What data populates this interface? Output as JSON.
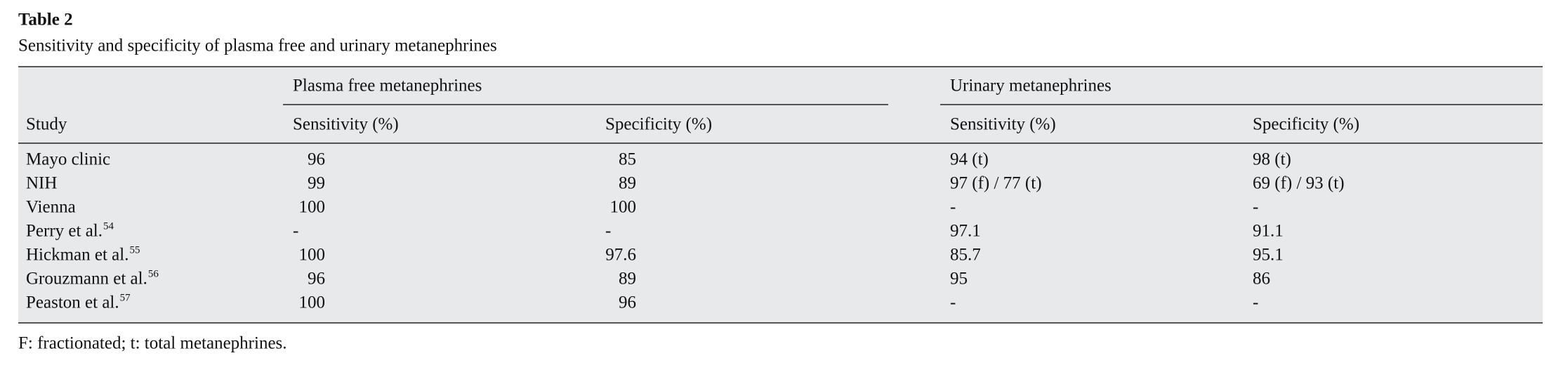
{
  "header": {
    "title": "Table 2",
    "caption": "Sensitivity and specificity of plasma free and urinary metanephrines"
  },
  "table": {
    "groups": [
      "Plasma free metanephrines",
      "Urinary metanephrines"
    ],
    "columns": [
      "Study",
      "Sensitivity (%)",
      "Specificity (%)",
      "Sensitivity (%)",
      "Specificity (%)"
    ],
    "rows": [
      {
        "study": "Mayo clinic",
        "values": [
          96,
          85,
          "94 (t)",
          "98 (t)"
        ]
      },
      {
        "study": "NIH",
        "values": [
          99,
          89,
          "97 (f) / 77 (t)",
          "69 (f) / 93 (t)"
        ]
      },
      {
        "study": "Vienna",
        "values": [
          100,
          100,
          "-",
          "-"
        ]
      },
      {
        "study": "Perry et al.",
        "ref": "54",
        "values": [
          "-",
          "-",
          97.1,
          91.1
        ]
      },
      {
        "study": "Hickman et al.",
        "ref": "55",
        "values": [
          100,
          97.6,
          85.7,
          95.1
        ]
      },
      {
        "study": "Grouzmann et al.",
        "ref": "56",
        "values": [
          96,
          89,
          95,
          86
        ]
      },
      {
        "study": "Peaston et al.",
        "ref": "57",
        "values": [
          100,
          96,
          "-",
          "-"
        ]
      }
    ]
  },
  "footnote": "F: fractionated; t: total metanephrines."
}
